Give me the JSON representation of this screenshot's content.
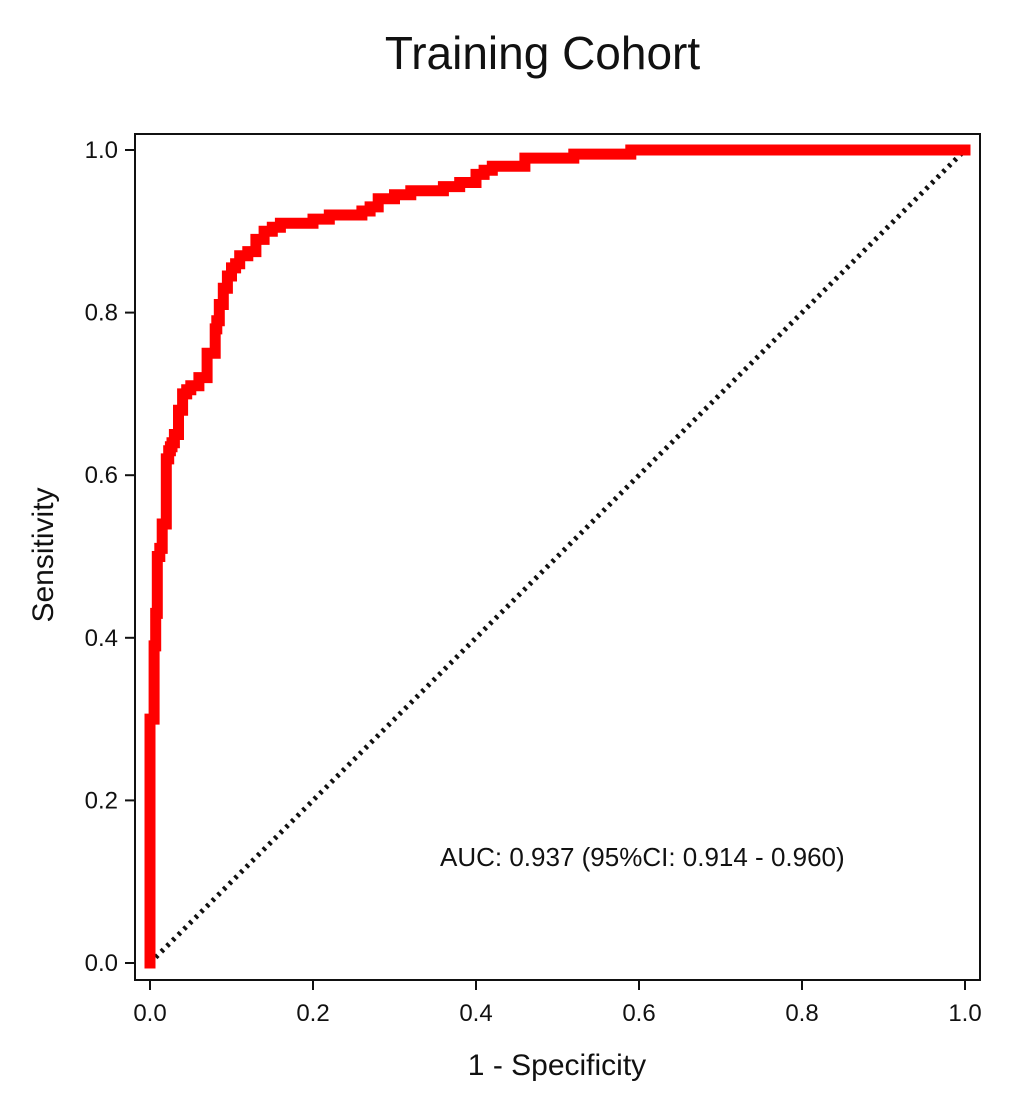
{
  "chart_data": {
    "type": "line",
    "title": "Training Cohort",
    "xlabel": "1 - Specificity",
    "ylabel": "Sensitivity",
    "xlim": [
      0,
      1
    ],
    "ylim": [
      0,
      1
    ],
    "x_ticks": [
      "0.0",
      "0.2",
      "0.4",
      "0.6",
      "0.8",
      "1.0"
    ],
    "y_ticks": [
      "0.0",
      "0.2",
      "0.4",
      "0.6",
      "0.8",
      "1.0"
    ],
    "grid": false,
    "annotation": "AUC: 0.937 (95%CI: 0.914 - 0.960)",
    "colors": {
      "roc": "#ff0000",
      "reference": "#111111"
    },
    "series": [
      {
        "style": "step",
        "x": [
          0,
          0,
          0.005,
          0.005,
          0.007,
          0.007,
          0.009,
          0.009,
          0.012,
          0.012,
          0.015,
          0.015,
          0.02,
          0.02,
          0.023,
          0.023,
          0.025,
          0.025,
          0.027,
          0.027,
          0.03,
          0.03,
          0.035,
          0.035,
          0.04,
          0.04,
          0.045,
          0.045,
          0.05,
          0.05,
          0.06,
          0.06,
          0.07,
          0.07,
          0.08,
          0.08,
          0.082,
          0.082,
          0.085,
          0.085,
          0.09,
          0.09,
          0.095,
          0.095,
          0.1,
          0.1,
          0.105,
          0.105,
          0.11,
          0.11,
          0.12,
          0.12,
          0.13,
          0.13,
          0.14,
          0.14,
          0.15,
          0.15,
          0.16,
          0.16,
          0.2,
          0.2,
          0.22,
          0.22,
          0.26,
          0.26,
          0.27,
          0.27,
          0.28,
          0.28,
          0.3,
          0.3,
          0.32,
          0.32,
          0.36,
          0.36,
          0.38,
          0.38,
          0.4,
          0.4,
          0.41,
          0.41,
          0.42,
          0.42,
          0.46,
          0.46,
          0.52,
          0.52,
          0.59,
          0.59,
          1.0
        ],
        "y": [
          0,
          0.3,
          0.3,
          0.39,
          0.39,
          0.43,
          0.43,
          0.5,
          0.5,
          0.51,
          0.51,
          0.54,
          0.54,
          0.62,
          0.62,
          0.63,
          0.63,
          0.635,
          0.635,
          0.64,
          0.64,
          0.65,
          0.65,
          0.68,
          0.68,
          0.7,
          0.7,
          0.705,
          0.705,
          0.71,
          0.71,
          0.72,
          0.72,
          0.75,
          0.75,
          0.78,
          0.78,
          0.79,
          0.79,
          0.81,
          0.81,
          0.83,
          0.83,
          0.845,
          0.845,
          0.855,
          0.855,
          0.86,
          0.86,
          0.87,
          0.87,
          0.875,
          0.875,
          0.89,
          0.89,
          0.9,
          0.9,
          0.905,
          0.905,
          0.91,
          0.91,
          0.915,
          0.915,
          0.92,
          0.92,
          0.925,
          0.925,
          0.93,
          0.93,
          0.94,
          0.94,
          0.945,
          0.945,
          0.95,
          0.95,
          0.955,
          0.955,
          0.96,
          0.96,
          0.97,
          0.97,
          0.975,
          0.975,
          0.98,
          0.98,
          0.99,
          0.99,
          0.995,
          0.995,
          1.0,
          1.0
        ]
      },
      {
        "style": "dotted",
        "x": [
          0,
          1
        ],
        "y": [
          0,
          1
        ]
      }
    ]
  }
}
